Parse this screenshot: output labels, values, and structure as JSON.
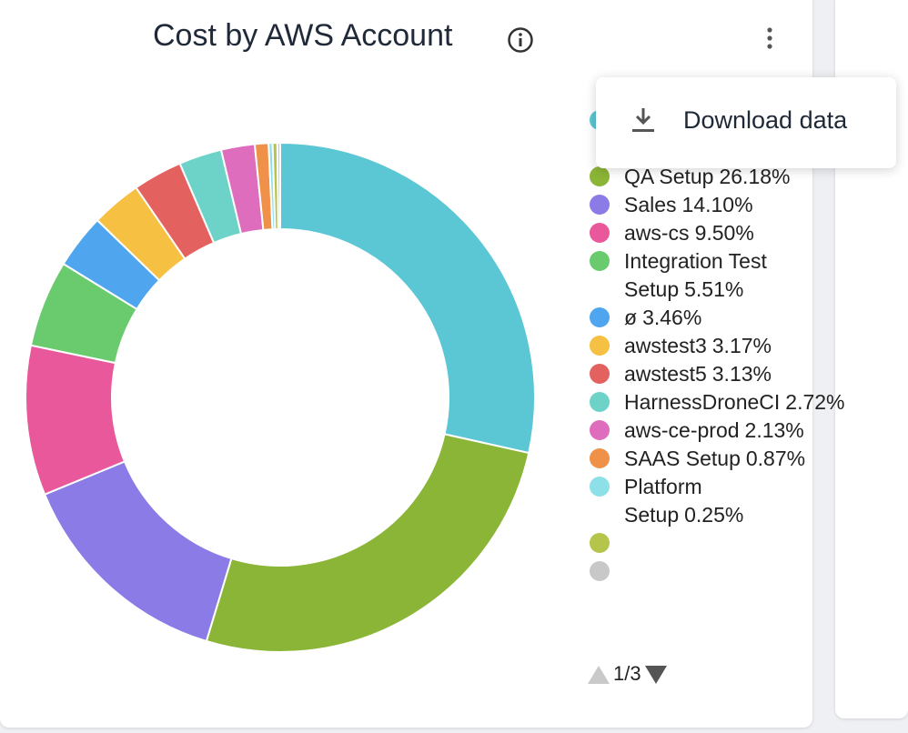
{
  "chart_data": {
    "type": "pie",
    "title": "Cost by AWS Account",
    "categories": [
      null,
      "QA Setup",
      "Sales",
      "aws-cs",
      "Integration Test Setup",
      "ø",
      "awstest3",
      "awstest5",
      "HarnessDroneCI",
      "aws-ce-prod",
      "SAAS Setup",
      "Platform Setup",
      null,
      null
    ],
    "values": [
      28.5,
      26.18,
      14.1,
      9.5,
      5.51,
      3.46,
      3.17,
      3.13,
      2.72,
      2.13,
      0.87,
      0.25,
      0.3,
      0.18
    ],
    "value_labels": [
      null,
      "26.18%",
      "14.10%",
      "9.50%",
      "5.51%",
      "3.46%",
      "3.17%",
      "3.13%",
      "2.72%",
      "2.13%",
      "0.87%",
      "0.25%",
      null,
      null
    ],
    "colors": [
      "#5bc6d4",
      "#8bb536",
      "#8a7be6",
      "#e8589a",
      "#6acb6e",
      "#4fa6ef",
      "#f6c043",
      "#e3625f",
      "#6dd3c9",
      "#df6dbd",
      "#f0914a",
      "#8ddfe8",
      "#b5c44a",
      "#c8c8c8"
    ],
    "legend_page": "1/3"
  },
  "menu": {
    "items": [
      "Download data"
    ]
  }
}
